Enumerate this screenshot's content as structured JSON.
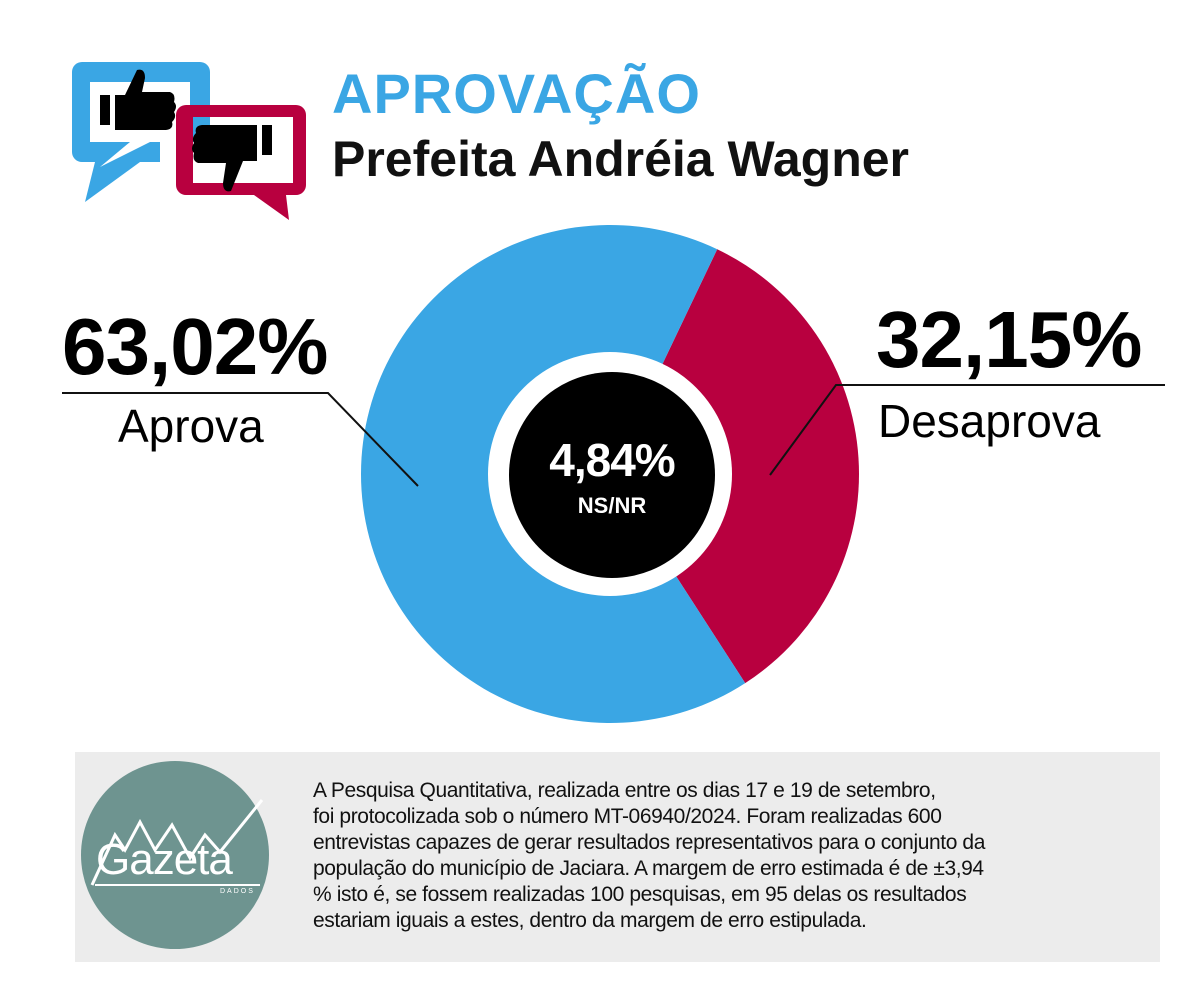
{
  "header": {
    "title": "APROVAÇÃO",
    "subtitle": "Prefeita Andréia Wagner",
    "icon": "thumbs-up-down-speech-bubbles"
  },
  "colors": {
    "approve": "#3aa6e4",
    "disapprove": "#b8003f",
    "center": "#000000",
    "footer_bg": "#ececec",
    "logo": "#6e9490"
  },
  "chart_data": {
    "type": "pie",
    "title": "APROVAÇÃO - Prefeita Andréia Wagner",
    "slices": [
      {
        "label": "Aprova",
        "value": 63.02,
        "display": "63,02%",
        "color": "#3aa6e4"
      },
      {
        "label": "Desaprova",
        "value": 32.15,
        "display": "32,15%",
        "color": "#b8003f"
      }
    ],
    "center": {
      "label": "NS/NR",
      "value": 4.84,
      "display": "4,84%"
    }
  },
  "footer": {
    "logo_text": "Gazeta",
    "logo_subtext": "DADOS",
    "lines": [
      "A Pesquisa Quantitativa, realizada entre os dias 17 e 19 de setembro,",
      "foi protocolizada sob o número MT-06940/2024. Foram realizadas 600",
      "entrevistas capazes de gerar resultados representativos para o conjunto da",
      "população do município de Jaciara. A margem de erro estimada é de ±3,94",
      "%  isto é, se fossem realizadas 100 pesquisas, em 95 delas os resultados",
      "estariam iguais a estes, dentro da margem de erro estipulada."
    ]
  }
}
